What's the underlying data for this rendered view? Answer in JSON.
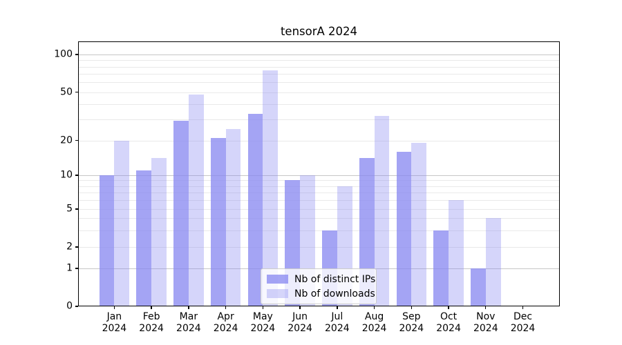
{
  "chart_data": {
    "type": "bar",
    "title": "tensorA 2024",
    "categories": [
      "Jan 2024",
      "Feb 2024",
      "Mar 2024",
      "Apr 2024",
      "May 2024",
      "Jun 2024",
      "Jul 2024",
      "Aug 2024",
      "Sep 2024",
      "Oct 2024",
      "Nov 2024",
      "Dec 2024"
    ],
    "series": [
      {
        "name": "Nb of distinct IPs",
        "color": "#8686f0",
        "alpha": 0.75,
        "values": [
          10,
          11,
          29,
          21,
          33,
          9,
          3,
          14,
          16,
          3,
          1,
          0
        ]
      },
      {
        "name": "Nb of downloads",
        "color": "#8686f0",
        "alpha": 0.35,
        "values": [
          20,
          14,
          48,
          25,
          75,
          10,
          8,
          32,
          19,
          6,
          4,
          0
        ]
      }
    ],
    "yscale": "log-like (decades 1-10-100, linear 0-1 segment, 0 at baseline)",
    "ylim": [
      0,
      130
    ],
    "ytick_values": [
      100,
      50,
      20,
      10,
      5,
      2,
      1,
      0
    ],
    "ytick_labels": [
      "100",
      "50",
      "20",
      "10",
      "5",
      "2",
      "1",
      "0"
    ],
    "major_gridlines": [
      1,
      10,
      100
    ],
    "minor_gridlines": [
      2,
      3,
      4,
      5,
      6,
      7,
      8,
      9,
      20,
      30,
      40,
      50,
      60,
      70,
      80,
      90
    ],
    "grid": true,
    "legend": {
      "position": "lower center",
      "items": [
        "Nb of distinct IPs",
        "Nb of downloads"
      ]
    },
    "colors": {
      "bar_base": "#8686f0",
      "grid_minor": "#e9e9e9",
      "grid_major": "#c6c6c6",
      "axis": "#000000",
      "legend_border": "#cccccc"
    }
  }
}
